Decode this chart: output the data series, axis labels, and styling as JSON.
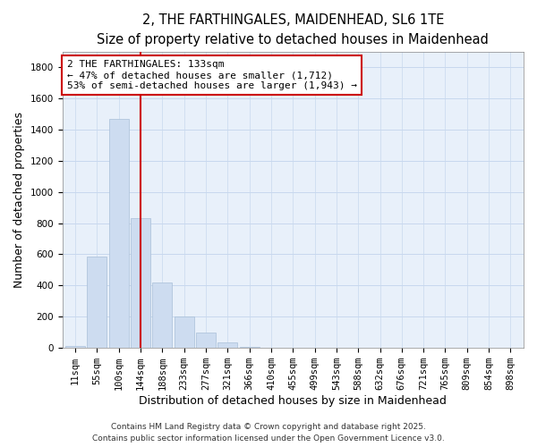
{
  "title": "2, THE FARTHINGALES, MAIDENHEAD, SL6 1TE",
  "subtitle": "Size of property relative to detached houses in Maidenhead",
  "xlabel": "Distribution of detached houses by size in Maidenhead",
  "ylabel": "Number of detached properties",
  "bar_labels": [
    "11sqm",
    "55sqm",
    "100sqm",
    "144sqm",
    "188sqm",
    "233sqm",
    "277sqm",
    "321sqm",
    "366sqm",
    "410sqm",
    "455sqm",
    "499sqm",
    "543sqm",
    "588sqm",
    "632sqm",
    "676sqm",
    "721sqm",
    "765sqm",
    "809sqm",
    "854sqm",
    "898sqm"
  ],
  "bar_values": [
    15,
    585,
    1465,
    830,
    420,
    200,
    100,
    35,
    8,
    2,
    0,
    0,
    0,
    0,
    0,
    0,
    0,
    0,
    0,
    0,
    0
  ],
  "bar_color": "#cddcf0",
  "bar_edge_color": "#a8bfd8",
  "grid_color": "#c8d8ee",
  "background_color": "#e8f0fa",
  "vline_x": 3,
  "vline_color": "#cc0000",
  "annotation_title": "2 THE FARTHINGALES: 133sqm",
  "annotation_line1": "← 47% of detached houses are smaller (1,712)",
  "annotation_line2": "53% of semi-detached houses are larger (1,943) →",
  "annotation_box_color": "#ffffff",
  "annotation_box_edge": "#cc0000",
  "ylim": [
    0,
    1900
  ],
  "yticks": [
    0,
    200,
    400,
    600,
    800,
    1000,
    1200,
    1400,
    1600,
    1800
  ],
  "footer1": "Contains HM Land Registry data © Crown copyright and database right 2025.",
  "footer2": "Contains public sector information licensed under the Open Government Licence v3.0.",
  "title_fontsize": 10.5,
  "subtitle_fontsize": 9.5,
  "axis_label_fontsize": 9,
  "tick_fontsize": 7.5,
  "annotation_fontsize": 8,
  "footer_fontsize": 6.5
}
